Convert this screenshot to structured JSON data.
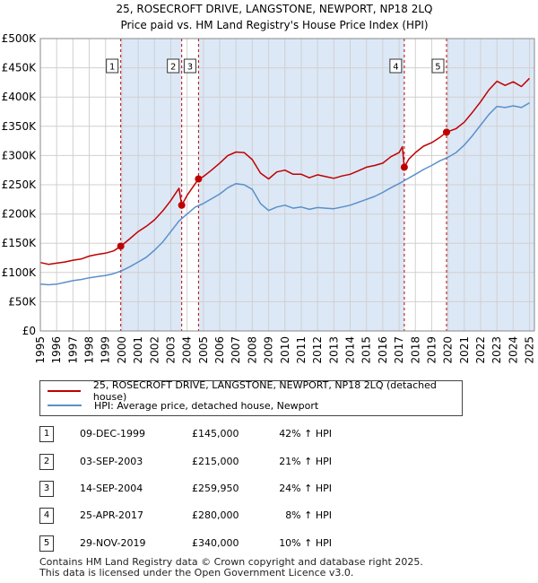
{
  "chart_data": {
    "type": "line",
    "title_line1": "25, ROSECROFT DRIVE, LANGSTONE, NEWPORT, NP18 2LQ",
    "title_line2": "Price paid vs. HM Land Registry's House Price Index (HPI)",
    "xlim": [
      1995,
      2025.3
    ],
    "ylim": [
      0,
      500000
    ],
    "x_ticks": [
      1995,
      1996,
      1997,
      1998,
      1999,
      2000,
      2001,
      2002,
      2003,
      2004,
      2005,
      2006,
      2007,
      2008,
      2009,
      2010,
      2011,
      2012,
      2013,
      2014,
      2015,
      2016,
      2017,
      2018,
      2019,
      2020,
      2021,
      2022,
      2023,
      2024,
      2025
    ],
    "y_ticks": [
      0,
      50000,
      100000,
      150000,
      200000,
      250000,
      300000,
      350000,
      400000,
      450000,
      500000
    ],
    "y_tick_labels": [
      "£0",
      "£50K",
      "£100K",
      "£150K",
      "£200K",
      "£250K",
      "£300K",
      "£350K",
      "£400K",
      "£450K",
      "£500K"
    ],
    "grid": true,
    "colors": {
      "property": "#c00000",
      "hpi": "#5b8fc9",
      "shade": "#dce8f6",
      "marker_line": "#c00000"
    },
    "series": [
      {
        "name": "25, ROSECROFT DRIVE, LANGSTONE, NEWPORT, NP18 2LQ (detached house)",
        "x": [
          1995.0,
          1995.5,
          1996.0,
          1996.5,
          1997.0,
          1997.5,
          1998.0,
          1998.5,
          1999.0,
          1999.5,
          1999.93,
          2000.5,
          2001.0,
          2001.5,
          2002.0,
          2002.5,
          2003.0,
          2003.5,
          2003.67,
          2004.0,
          2004.5,
          2004.7,
          2005.0,
          2005.5,
          2006.0,
          2006.5,
          2007.0,
          2007.5,
          2008.0,
          2008.5,
          2009.0,
          2009.5,
          2010.0,
          2010.5,
          2011.0,
          2011.5,
          2012.0,
          2012.5,
          2013.0,
          2013.5,
          2014.0,
          2014.5,
          2015.0,
          2015.5,
          2016.0,
          2016.5,
          2017.0,
          2017.2,
          2017.32,
          2017.6,
          2018.0,
          2018.5,
          2019.0,
          2019.5,
          2019.91,
          2020.5,
          2021.0,
          2021.5,
          2022.0,
          2022.5,
          2023.0,
          2023.5,
          2024.0,
          2024.5,
          2025.0
        ],
        "y": [
          117000,
          114000,
          116000,
          118000,
          121000,
          123000,
          128000,
          131000,
          133000,
          137000,
          145000,
          158000,
          170000,
          179000,
          190000,
          205000,
          223000,
          244000,
          215000,
          232000,
          252000,
          259950,
          264000,
          275000,
          287000,
          300000,
          306000,
          305000,
          293000,
          270000,
          260000,
          272000,
          275000,
          268000,
          268000,
          262000,
          267000,
          264000,
          261000,
          265000,
          268000,
          274000,
          280000,
          283000,
          287000,
          298000,
          305000,
          315000,
          280000,
          294000,
          305000,
          316000,
          322000,
          331000,
          340000,
          346000,
          357000,
          374000,
          392000,
          412000,
          427000,
          420000,
          426000,
          418000,
          432000
        ]
      },
      {
        "name": "HPI: Average price, detached house, Newport",
        "x": [
          1995.0,
          1995.5,
          1996.0,
          1996.5,
          1997.0,
          1997.5,
          1998.0,
          1998.5,
          1999.0,
          1999.5,
          2000.0,
          2000.5,
          2001.0,
          2001.5,
          2002.0,
          2002.5,
          2003.0,
          2003.5,
          2004.0,
          2004.5,
          2005.0,
          2005.5,
          2006.0,
          2006.5,
          2007.0,
          2007.5,
          2008.0,
          2008.5,
          2009.0,
          2009.5,
          2010.0,
          2010.5,
          2011.0,
          2011.5,
          2012.0,
          2012.5,
          2013.0,
          2013.5,
          2014.0,
          2014.5,
          2015.0,
          2015.5,
          2016.0,
          2016.5,
          2017.0,
          2017.5,
          2018.0,
          2018.5,
          2019.0,
          2019.5,
          2020.0,
          2020.5,
          2021.0,
          2021.5,
          2022.0,
          2022.5,
          2023.0,
          2023.5,
          2024.0,
          2024.5,
          2025.0
        ],
        "y": [
          80000,
          79000,
          80000,
          83000,
          86000,
          88000,
          91000,
          93000,
          95000,
          98000,
          103000,
          110000,
          118000,
          126000,
          138000,
          152000,
          170000,
          188000,
          200000,
          212000,
          218000,
          226000,
          234000,
          245000,
          252000,
          250000,
          242000,
          218000,
          206000,
          212000,
          215000,
          210000,
          212000,
          208000,
          211000,
          210000,
          209000,
          212000,
          215000,
          220000,
          225000,
          230000,
          237000,
          245000,
          252000,
          260000,
          268000,
          276000,
          283000,
          291000,
          297000,
          305000,
          318000,
          334000,
          352000,
          370000,
          384000,
          382000,
          385000,
          382000,
          390000
        ]
      }
    ],
    "markers": [
      {
        "label": "1",
        "x": 1999.93,
        "y": 145000
      },
      {
        "label": "2",
        "x": 2003.67,
        "y": 215000
      },
      {
        "label": "3",
        "x": 2004.7,
        "y": 259950
      },
      {
        "label": "4",
        "x": 2017.32,
        "y": 280000
      },
      {
        "label": "5",
        "x": 2019.91,
        "y": 340000
      }
    ],
    "shaded_spans": [
      [
        1999.93,
        2003.67
      ],
      [
        2004.7,
        2017.32
      ],
      [
        2019.91,
        2025.3
      ]
    ]
  },
  "legend": {
    "property_label": "25, ROSECROFT DRIVE, LANGSTONE, NEWPORT, NP18 2LQ (detached house)",
    "hpi_label": "HPI: Average price, detached house, Newport"
  },
  "transactions": [
    {
      "num": "1",
      "date": "09-DEC-1999",
      "price": "£145,000",
      "hpi": "42% ↑ HPI"
    },
    {
      "num": "2",
      "date": "03-SEP-2003",
      "price": "£215,000",
      "hpi": "21% ↑ HPI"
    },
    {
      "num": "3",
      "date": "14-SEP-2004",
      "price": "£259,950",
      "hpi": "24% ↑ HPI"
    },
    {
      "num": "4",
      "date": "25-APR-2017",
      "price": "£280,000",
      "hpi": "8% ↑ HPI"
    },
    {
      "num": "5",
      "date": "29-NOV-2019",
      "price": "£340,000",
      "hpi": "10% ↑ HPI"
    }
  ],
  "footer": {
    "line1": "Contains HM Land Registry data © Crown copyright and database right 2025.",
    "line2": "This data is licensed under the Open Government Licence v3.0."
  }
}
